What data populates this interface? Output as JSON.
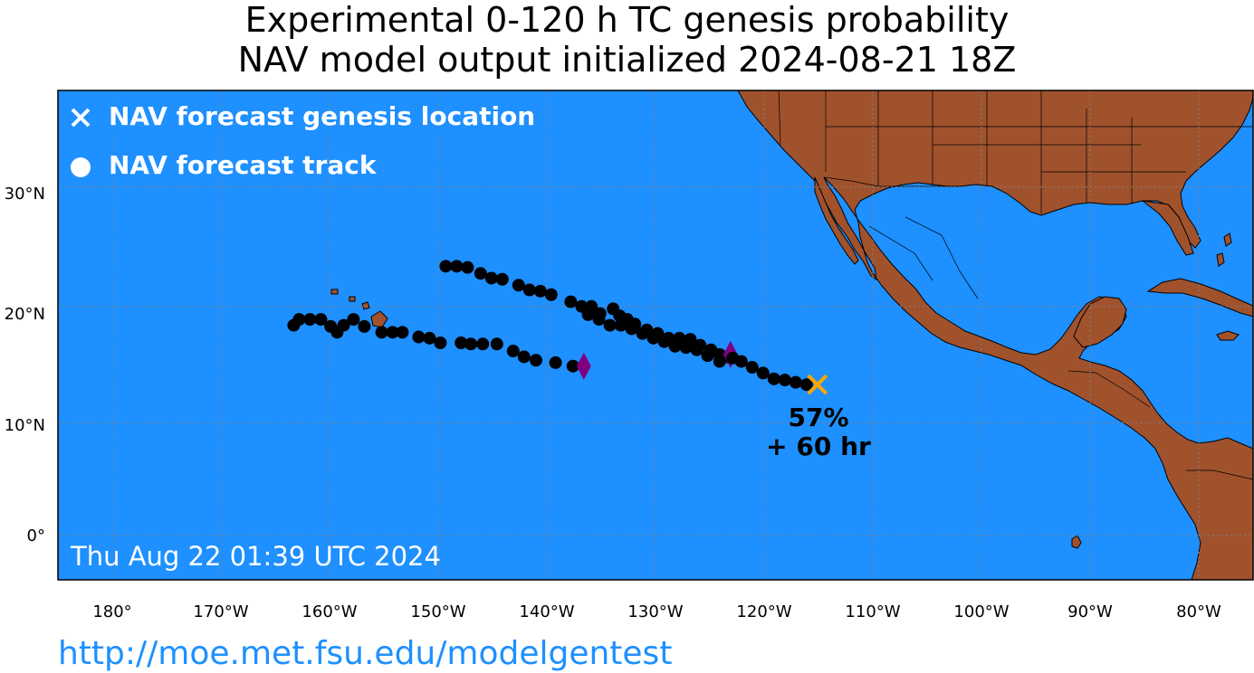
{
  "title": {
    "line1": "Experimental 0-120 h TC genesis probability",
    "line2": "NAV model output initialized 2024-08-21 18Z"
  },
  "legend": {
    "genesis_label": "NAV forecast genesis location",
    "track_label": "NAV forecast track"
  },
  "timestamp": "Thu Aug 22 01:39 UTC 2024",
  "url": "http://moe.met.fsu.edu/modelgentest",
  "lat_labels": [
    "30°N",
    "20°N",
    "10°N",
    "0°"
  ],
  "lon_labels": [
    "180°",
    "170°W",
    "160°W",
    "150°W",
    "140°W",
    "130°W",
    "120°W",
    "110°W",
    "100°W",
    "90°W",
    "80°W"
  ],
  "colors": {
    "ocean": "#1e90ff",
    "land": "#a0522d",
    "track": "#000000",
    "genesis_marker": "#ffa500",
    "end_marker": "#800080",
    "url": "#1e90ff"
  },
  "genesis": {
    "lon": -115.1,
    "lat": 13.3,
    "probability": "57%",
    "lead_time": "+ 60 hr"
  },
  "tracks": [
    {
      "points": [
        [
          -116.1,
          13.3
        ],
        [
          -117.1,
          13.5
        ],
        [
          -118.1,
          13.7
        ],
        [
          -119.1,
          13.8
        ],
        [
          -120.1,
          14.3
        ],
        [
          -121.1,
          14.8
        ],
        [
          -122.1,
          15.3
        ],
        [
          -123.1,
          15.6
        ],
        [
          -124.1,
          15.9
        ],
        [
          -124.9,
          16.3
        ],
        [
          -125.9,
          16.7
        ],
        [
          -126.8,
          17.2
        ],
        [
          -127.8,
          17.3
        ],
        [
          -128.8,
          17.3
        ],
        [
          -129.8,
          17.7
        ],
        [
          -130.8,
          18.0
        ],
        [
          -131.9,
          18.5
        ],
        [
          -132.6,
          18.9
        ],
        [
          -133.3,
          19.2
        ],
        [
          -133.9,
          19.8
        ],
        [
          -135.1,
          19.4
        ],
        [
          -135.9,
          20.0
        ],
        [
          -136.8,
          20.0
        ],
        [
          -137.8,
          20.4
        ],
        [
          -139.6,
          21.0
        ],
        [
          -140.6,
          21.3
        ],
        [
          -141.6,
          21.4
        ],
        [
          -142.6,
          21.8
        ],
        [
          -144.1,
          22.3
        ],
        [
          -145.1,
          22.4
        ],
        [
          -146.1,
          22.8
        ],
        [
          -147.3,
          23.3
        ],
        [
          -148.3,
          23.4
        ],
        [
          -149.3,
          23.4
        ]
      ],
      "end": [
        -123.1,
        15.9
      ]
    },
    {
      "points": [
        [
          -122.9,
          15.6
        ],
        [
          -124.1,
          15.3
        ],
        [
          -125.2,
          15.8
        ],
        [
          -126.2,
          16.3
        ],
        [
          -127.2,
          16.5
        ],
        [
          -128.2,
          16.6
        ],
        [
          -129.2,
          17.0
        ],
        [
          -130.2,
          17.3
        ],
        [
          -131.2,
          17.7
        ],
        [
          -132.2,
          18.1
        ],
        [
          -133.2,
          18.4
        ],
        [
          -134.2,
          18.4
        ],
        [
          -135.2,
          18.9
        ],
        [
          -136.2,
          19.3
        ]
      ],
      "end": null
    },
    {
      "points": [
        [
          -137.6,
          14.9
        ],
        [
          -139.2,
          15.2
        ],
        [
          -141.0,
          15.4
        ],
        [
          -142.1,
          15.7
        ],
        [
          -143.1,
          16.2
        ],
        [
          -144.6,
          16.8
        ],
        [
          -145.9,
          16.8
        ],
        [
          -147.0,
          16.8
        ],
        [
          -147.9,
          16.9
        ],
        [
          -149.8,
          16.9
        ],
        [
          -150.8,
          17.3
        ],
        [
          -151.8,
          17.4
        ],
        [
          -153.3,
          17.8
        ],
        [
          -154.2,
          17.8
        ],
        [
          -155.2,
          17.8
        ],
        [
          -156.8,
          18.3
        ],
        [
          -157.8,
          18.9
        ],
        [
          -158.7,
          18.4
        ],
        [
          -159.3,
          17.8
        ],
        [
          -159.9,
          18.3
        ],
        [
          -160.8,
          18.9
        ],
        [
          -161.8,
          18.9
        ],
        [
          -162.8,
          18.9
        ],
        [
          -163.3,
          18.4
        ]
      ],
      "end": [
        -136.6,
        14.9
      ]
    }
  ]
}
